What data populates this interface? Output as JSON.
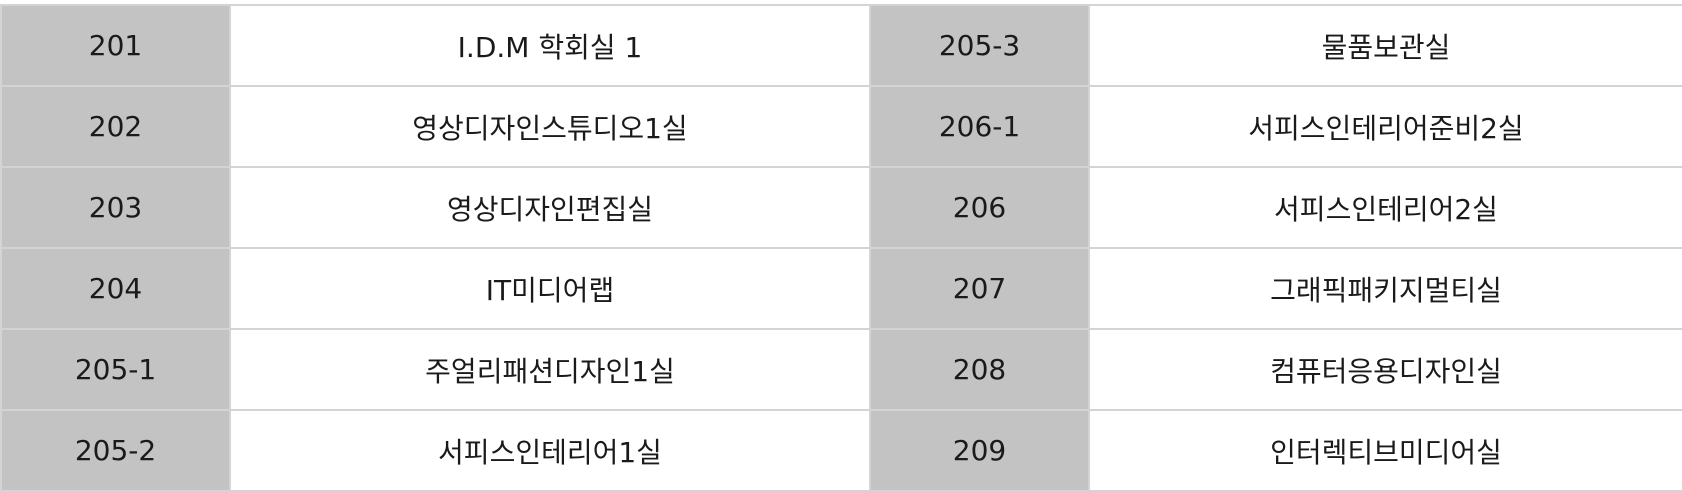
{
  "rooms": [
    {
      "left": {
        "number": "201",
        "name": "I.D.M 학회실 1"
      },
      "right": {
        "number": "205-3",
        "name": "물품보관실"
      }
    },
    {
      "left": {
        "number": "202",
        "name": "영상디자인스튜디오1실"
      },
      "right": {
        "number": "206-1",
        "name": "서피스인테리어준비2실"
      }
    },
    {
      "left": {
        "number": "203",
        "name": "영상디자인편집실"
      },
      "right": {
        "number": "206",
        "name": "서피스인테리어2실"
      }
    },
    {
      "left": {
        "number": "204",
        "name": "IT미디어랩"
      },
      "right": {
        "number": "207",
        "name": "그래픽패키지멀티실"
      }
    },
    {
      "left": {
        "number": "205-1",
        "name": "주얼리패션디자인1실"
      },
      "right": {
        "number": "208",
        "name": "컴퓨터응용디자인실"
      }
    },
    {
      "left": {
        "number": "205-2",
        "name": "서피스인테리어1실"
      },
      "right": {
        "number": "209",
        "name": "인터렉티브미디어실"
      }
    }
  ]
}
